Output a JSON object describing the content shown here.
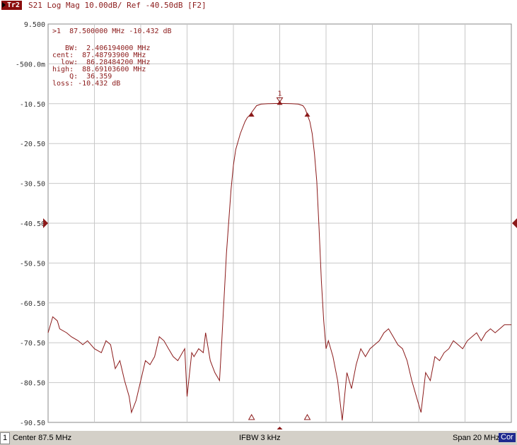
{
  "header": {
    "trace_tag": "Tr2",
    "trace_text": "S21 Log Mag 10.00dB/ Ref -40.50dB [F2]"
  },
  "marker_readout": {
    "line1": ">1  87.500000 MHz -10.432 dB",
    "bw": "   BW:  2.406194000 MHz",
    "cent": "cent:  87.48793900 MHz",
    "low": "  low:  86.28484200 MHz",
    "high": "high:  88.69103600 MHz",
    "q": "    Q:  36.359",
    "loss": "loss: -10.432 dB"
  },
  "status": {
    "channel": "1",
    "center": "Center 87.5 MHz",
    "ifbw": "IFBW 3 kHz",
    "span": "Span 20 MHz",
    "cor": "Cor"
  },
  "colors": {
    "trace": "#8b1a1a",
    "grid": "#c8c8c8",
    "label": "#8b1a1a",
    "axis_text": "#333333"
  },
  "chart_data": {
    "type": "line",
    "title": "S21 Log Mag 10.00dB/ Ref -40.50dB [F2]",
    "xlabel": "",
    "ylabel": "",
    "xlim": [
      77.5,
      97.5
    ],
    "ylim": [
      -90.5,
      9.5
    ],
    "yticks": [
      9.5,
      -0.5,
      -10.5,
      -20.5,
      -30.5,
      -40.5,
      -50.5,
      -60.5,
      -70.5,
      -80.5,
      -90.5
    ],
    "ytick_labels": [
      "9.500",
      "-500.0m",
      "-10.50",
      "-20.50",
      "-30.50",
      "-40.50",
      "-50.50",
      "-60.50",
      "-70.50",
      "-80.50",
      "-90.50"
    ],
    "x_divisions": 10,
    "reference_level": -40.5,
    "grid": true,
    "markers": [
      {
        "label": "1",
        "x": 87.5,
        "y": -10.432
      },
      {
        "label": "",
        "x": 86.28484,
        "y": -13.4
      },
      {
        "label": "",
        "x": 88.69104,
        "y": -13.4
      }
    ],
    "series": [
      {
        "x": [
          77.5,
          77.7,
          77.9,
          78.0,
          78.3,
          78.5,
          78.8,
          79.0,
          79.2,
          79.5,
          79.8,
          80.0,
          80.2,
          80.4,
          80.6,
          80.8,
          81.0,
          81.1,
          81.3,
          81.5,
          81.7,
          81.9,
          82.1,
          82.3,
          82.5,
          82.7,
          82.9,
          83.1,
          83.3,
          83.4,
          83.5,
          83.7,
          83.8,
          84.0,
          84.2,
          84.3,
          84.5,
          84.7,
          84.9,
          85.0,
          85.2,
          85.4,
          85.5,
          85.6,
          85.8,
          86.0,
          86.1,
          86.2,
          86.3,
          86.4,
          86.5,
          86.7,
          87.0,
          87.3,
          87.5,
          87.7,
          88.0,
          88.3,
          88.5,
          88.6,
          88.7,
          88.8,
          88.9,
          89.0,
          89.1,
          89.2,
          89.3,
          89.4,
          89.5,
          89.6,
          89.8,
          90.0,
          90.2,
          90.4,
          90.6,
          90.8,
          91.0,
          91.2,
          91.4,
          91.6,
          91.8,
          92.0,
          92.2,
          92.4,
          92.6,
          92.8,
          93.0,
          93.2,
          93.4,
          93.6,
          93.8,
          94.0,
          94.2,
          94.4,
          94.6,
          94.8,
          95.0,
          95.2,
          95.4,
          95.6,
          95.8,
          96.0,
          96.2,
          96.4,
          96.6,
          96.8,
          97.0,
          97.2,
          97.5
        ],
        "y": [
          -68,
          -64,
          -65,
          -67,
          -68,
          -69,
          -70,
          -71,
          -70,
          -72,
          -73,
          -70,
          -71,
          -77,
          -75,
          -80,
          -84,
          -88,
          -85,
          -80,
          -75,
          -76,
          -74,
          -69,
          -70,
          -72,
          -74,
          -75,
          -73,
          -72,
          -84,
          -73,
          -74,
          -72,
          -73,
          -68,
          -75,
          -78,
          -80,
          -70,
          -48,
          -32,
          -26,
          -22,
          -18,
          -15,
          -14,
          -13.4,
          -12.6,
          -11.8,
          -11,
          -10.6,
          -10.5,
          -10.45,
          -10.432,
          -10.45,
          -10.5,
          -10.6,
          -11,
          -11.8,
          -13.4,
          -15,
          -18,
          -23,
          -30,
          -42,
          -55,
          -65,
          -72,
          -70,
          -74,
          -80,
          -90,
          -78,
          -82,
          -76,
          -72,
          -74,
          -72,
          -71,
          -70,
          -68,
          -67,
          -69,
          -71,
          -72,
          -75,
          -80,
          -84,
          -88,
          -78,
          -80,
          -74,
          -75,
          -73,
          -72,
          -70,
          -71,
          -72,
          -70,
          -69,
          -68,
          -70,
          -68,
          -67,
          -68,
          -67,
          -66,
          -66
        ]
      }
    ]
  }
}
